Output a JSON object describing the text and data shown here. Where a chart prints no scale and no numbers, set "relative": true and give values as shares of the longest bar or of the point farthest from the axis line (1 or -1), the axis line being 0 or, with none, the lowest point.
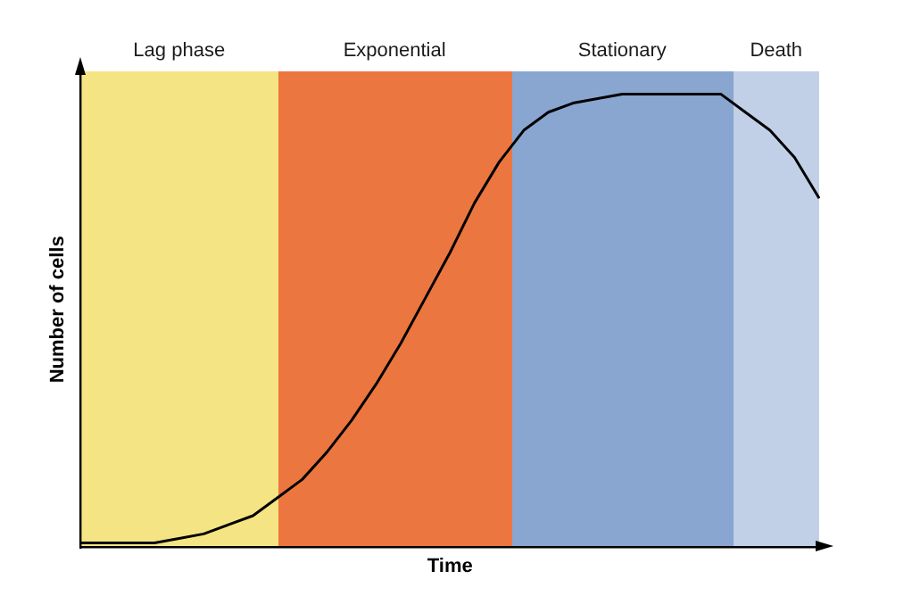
{
  "chart_data": {
    "type": "line",
    "xlabel": "Time",
    "ylabel": "Number of cells",
    "relative": true,
    "grid": false,
    "legend": false,
    "marker": "none",
    "line_style": "solid",
    "categories": [
      null,
      null,
      null,
      null,
      null,
      null,
      null,
      null,
      null,
      null,
      null,
      null,
      null,
      null,
      null,
      null,
      null,
      null,
      null,
      null,
      null,
      null,
      null,
      null,
      null,
      null,
      null,
      null,
      null,
      null,
      null
    ],
    "series": [
      {
        "color": "#000000",
        "values": [
          0.01,
          0.01,
          0.01,
          0.01,
          0.02,
          0.03,
          0.05,
          0.07,
          0.11,
          0.15,
          0.21,
          0.28,
          0.36,
          0.45,
          0.55,
          0.65,
          0.76,
          0.85,
          0.92,
          0.96,
          0.98,
          0.99,
          1,
          1,
          1,
          1,
          1,
          0.96,
          0.92,
          0.86,
          0.77
        ]
      }
    ],
    "annotations": [
      "Lag phase",
      "Exponential",
      "Stationary",
      "Death"
    ]
  }
}
